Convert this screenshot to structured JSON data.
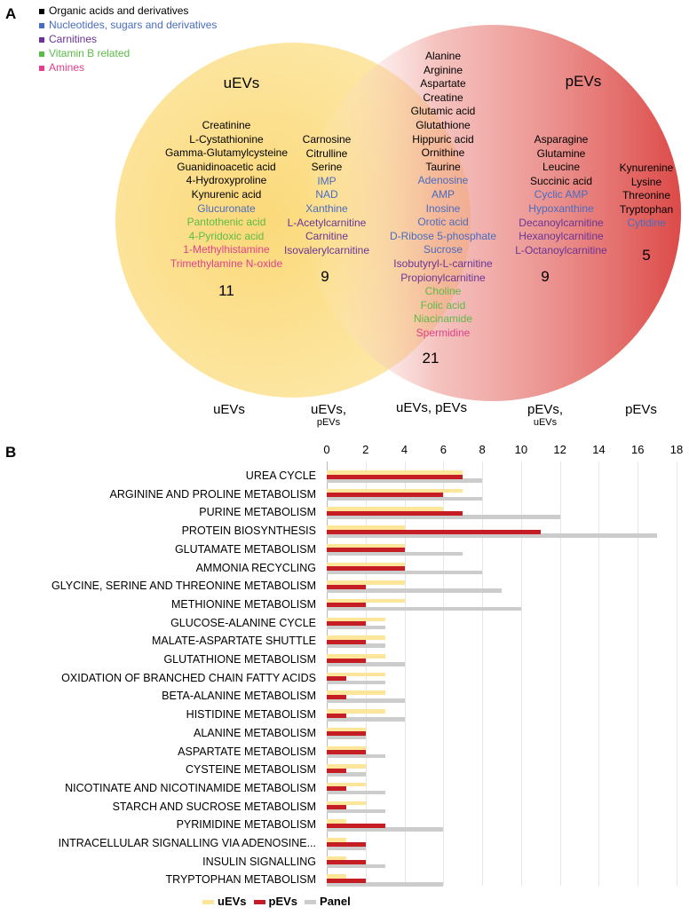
{
  "colors": {
    "o": "#000000",
    "n": "#4a6cc0",
    "c": "#6a3496",
    "v": "#5cbb48",
    "a": "#e0408c",
    "uEVs": "#fde59a",
    "pEVs": "#c41e24",
    "Panel": "#cccccc"
  },
  "venn": {
    "panel_label": "A",
    "legend": [
      {
        "label": "Organic acids and derivatives",
        "cat": "o"
      },
      {
        "label": "Nucleotides, sugars and derivatives",
        "cat": "n"
      },
      {
        "label": "Carnitines",
        "cat": "c"
      },
      {
        "label": "Vitamin B related",
        "cat": "v"
      },
      {
        "label": "Amines",
        "cat": "a"
      }
    ],
    "set_labels": {
      "left": "uEVs",
      "right": "pEVs"
    },
    "regions": [
      {
        "count": "11",
        "items": [
          [
            "Creatinine",
            "o"
          ],
          [
            "L-Cystathionine",
            "o"
          ],
          [
            "Gamma-Glutamylcysteine",
            "o"
          ],
          [
            "Guanidinoacetic acid",
            "o"
          ],
          [
            "4-Hydroxyproline",
            "o"
          ],
          [
            "Kynurenic acid",
            "o"
          ],
          [
            "Glucuronate",
            "n"
          ],
          [
            "Pantothenic acid",
            "v"
          ],
          [
            "4-Pyridoxic acid",
            "v"
          ],
          [
            "1-Methylhistamine",
            "a"
          ],
          [
            "Trimethylamine N-oxide",
            "a"
          ]
        ]
      },
      {
        "count": "9",
        "items": [
          [
            "Carnosine",
            "o"
          ],
          [
            "Citrulline",
            "o"
          ],
          [
            "Serine",
            "o"
          ],
          [
            "IMP",
            "n"
          ],
          [
            "NAD",
            "n"
          ],
          [
            "Xanthine",
            "n"
          ],
          [
            "L-Acetylcarnitine",
            "c"
          ],
          [
            "Carnitine",
            "c"
          ],
          [
            "Isovalerylcarnitine",
            "c"
          ]
        ]
      },
      {
        "count": "21",
        "items": [
          [
            "Alanine",
            "o"
          ],
          [
            "Arginine",
            "o"
          ],
          [
            "Aspartate",
            "o"
          ],
          [
            "Creatine",
            "o"
          ],
          [
            "Glutamic acid",
            "o"
          ],
          [
            "Glutathione",
            "o"
          ],
          [
            "Hippuric acid",
            "o"
          ],
          [
            "Ornithine",
            "o"
          ],
          [
            "Taurine",
            "o"
          ],
          [
            "Adenosine",
            "n"
          ],
          [
            "AMP",
            "n"
          ],
          [
            "Inosine",
            "n"
          ],
          [
            "Orotic acid",
            "n"
          ],
          [
            "D-Ribose 5-phosphate",
            "n"
          ],
          [
            "Sucrose",
            "n"
          ],
          [
            "Isobutyryl-L-carnitine",
            "c"
          ],
          [
            "Propionylcarnitine",
            "c"
          ],
          [
            "Choline",
            "v"
          ],
          [
            "Folic acid",
            "v"
          ],
          [
            "Niacinamide",
            "v"
          ],
          [
            "Spermidine",
            "a"
          ]
        ]
      },
      {
        "count": "9",
        "items": [
          [
            "Asparagine",
            "o"
          ],
          [
            "Glutamine",
            "o"
          ],
          [
            "Leucine",
            "o"
          ],
          [
            "Succinic acid",
            "o"
          ],
          [
            "Cyclic AMP",
            "n"
          ],
          [
            "Hypoxanthine",
            "n"
          ],
          [
            "Decanoylcarnitine",
            "c"
          ],
          [
            "Hexanoylcarnitine",
            "c"
          ],
          [
            "L-Octanoylcarnitine",
            "c"
          ]
        ]
      },
      {
        "count": "5",
        "items": [
          [
            "Kynurenine",
            "o"
          ],
          [
            "Lysine",
            "o"
          ],
          [
            "Threonine",
            "o"
          ],
          [
            "Tryptophan",
            "o"
          ],
          [
            "Cytidine",
            "n"
          ]
        ]
      }
    ],
    "bottom_labels": [
      {
        "main": "uEVs",
        "sub": ""
      },
      {
        "main": "uEVs,",
        "sub": "pEVs"
      },
      {
        "main": "uEVs, pEVs",
        "sub": ""
      },
      {
        "main": "pEVs,",
        "sub": "uEVs"
      },
      {
        "main": "pEVs",
        "sub": ""
      }
    ]
  },
  "chart_data": {
    "panel_label": "B",
    "type": "bar",
    "orientation": "horizontal",
    "xlim": [
      0,
      18
    ],
    "xticks": [
      0,
      2,
      4,
      6,
      8,
      10,
      12,
      14,
      16,
      18
    ],
    "grid": true,
    "legend_position": "bottom",
    "categories": [
      "UREA CYCLE",
      "ARGININE AND PROLINE METABOLISM",
      "PURINE METABOLISM",
      "PROTEIN BIOSYNTHESIS",
      "GLUTAMATE METABOLISM",
      "AMMONIA RECYCLING",
      "GLYCINE, SERINE AND THREONINE METABOLISM",
      "METHIONINE METABOLISM",
      "GLUCOSE-ALANINE CYCLE",
      "MALATE-ASPARTATE SHUTTLE",
      "GLUTATHIONE METABOLISM",
      "OXIDATION OF BRANCHED CHAIN FATTY ACIDS",
      "BETA-ALANINE METABOLISM",
      "HISTIDINE METABOLISM",
      "ALANINE METABOLISM",
      "ASPARTATE METABOLISM",
      "CYSTEINE METABOLISM",
      "NICOTINATE AND NICOTINAMIDE METABOLISM",
      "STARCH AND SUCROSE METABOLISM",
      "PYRIMIDINE METABOLISM",
      "INTRACELLULAR SIGNALLING VIA ADENOSINE...",
      "INSULIN SIGNALLING",
      "TRYPTOPHAN METABOLISM"
    ],
    "series": [
      {
        "name": "uEVs",
        "values": [
          7,
          7,
          6,
          4,
          4,
          4,
          4,
          4,
          3,
          3,
          3,
          3,
          3,
          3,
          2,
          2,
          2,
          2,
          2,
          1,
          1,
          1,
          1
        ]
      },
      {
        "name": "pEVs",
        "values": [
          7,
          6,
          7,
          11,
          4,
          4,
          2,
          2,
          2,
          2,
          2,
          1,
          1,
          1,
          2,
          2,
          1,
          1,
          1,
          3,
          2,
          2,
          2
        ]
      },
      {
        "name": "Panel",
        "values": [
          8,
          8,
          12,
          17,
          7,
          8,
          9,
          10,
          3,
          3,
          4,
          3,
          4,
          4,
          2,
          3,
          2,
          3,
          3,
          6,
          2,
          3,
          6
        ]
      }
    ]
  }
}
